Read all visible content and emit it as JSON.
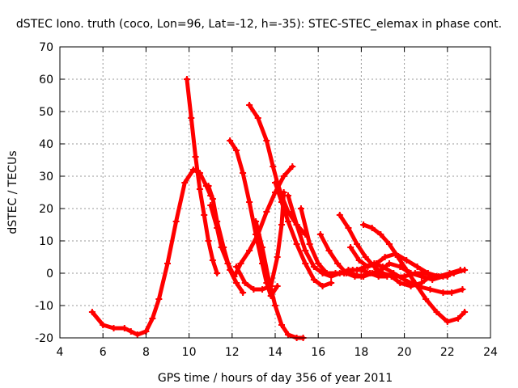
{
  "chart_data": {
    "type": "scatter",
    "title": "dSTEC Iono. truth (coco, Lon=96, Lat=-12, h=-35): STEC-STEC_elemax in phase cont.",
    "xlabel": "GPS time / hours of day 356 of year 2011",
    "ylabel": "dSTEC  / TECUs",
    "xlim": [
      4,
      24
    ],
    "ylim": [
      -20,
      70
    ],
    "xticks": [
      "4",
      "6",
      "8",
      "10",
      "12",
      "14",
      "16",
      "18",
      "20",
      "22",
      "24"
    ],
    "yticks": [
      "-20",
      "-10",
      "0",
      "10",
      "20",
      "30",
      "40",
      "50",
      "60",
      "70"
    ],
    "grid": true,
    "color": "#ff0000",
    "marker": "plus",
    "series": [
      {
        "x": [
          5.5,
          6.0,
          6.5,
          7.0,
          7.3,
          7.6,
          8.0,
          8.3,
          8.6,
          9.0,
          9.4,
          9.8,
          10.2,
          10.5,
          10.8,
          11.0
        ],
        "y": [
          -12,
          -16,
          -17,
          -17,
          -18,
          -19,
          -18,
          -14,
          -8,
          3,
          16,
          28,
          32,
          31,
          27,
          24
        ]
      },
      {
        "x": [
          9.9,
          10.1,
          10.3,
          10.5,
          10.7,
          10.9,
          11.1,
          11.3
        ],
        "y": [
          60,
          48,
          36,
          26,
          18,
          10,
          4,
          0
        ]
      },
      {
        "x": [
          10.9,
          11.1,
          11.3,
          11.6,
          11.9,
          12.2,
          12.5
        ],
        "y": [
          27,
          23,
          16,
          8,
          1,
          -3,
          -6
        ]
      },
      {
        "x": [
          11.0,
          11.3,
          11.5,
          11.8,
          12.1,
          12.4,
          12.8,
          13.2,
          13.6,
          14.0,
          14.4,
          14.8
        ],
        "y": [
          21,
          14,
          8,
          3,
          -1,
          3,
          7,
          12,
          19,
          25,
          30,
          33
        ]
      },
      {
        "x": [
          11.9,
          12.2,
          12.5,
          12.8,
          13.1,
          13.4,
          13.6,
          13.8,
          14.1
        ],
        "y": [
          41,
          38,
          31,
          22,
          12,
          3,
          -3,
          -7,
          -4
        ]
      },
      {
        "x": [
          12.8,
          13.2,
          13.6,
          13.9,
          14.1,
          14.3,
          14.6,
          15.0,
          15.4
        ],
        "y": [
          52,
          48,
          41,
          33,
          28,
          24,
          19,
          15,
          12
        ]
      },
      {
        "x": [
          12.2,
          12.6,
          13.0,
          13.4,
          13.8,
          14.1,
          14.3,
          14.4
        ],
        "y": [
          2,
          -3,
          -5,
          -5,
          -4,
          5,
          15,
          25
        ]
      },
      {
        "x": [
          13.1,
          13.4,
          13.7,
          14.0,
          14.3,
          14.6,
          15.0,
          15.3
        ],
        "y": [
          16,
          8,
          -2,
          -10,
          -16,
          -19,
          -20,
          -20
        ]
      },
      {
        "x": [
          14.0,
          14.3,
          14.6,
          15.0,
          15.4,
          15.8,
          16.2,
          16.6
        ],
        "y": [
          28,
          22,
          16,
          9,
          3,
          -2,
          -4,
          -3
        ]
      },
      {
        "x": [
          14.6,
          15.0,
          15.4,
          15.8,
          16.2,
          16.6,
          17.0,
          17.4,
          17.8,
          18.2,
          18.6,
          19.0,
          19.5,
          20.0,
          20.6,
          21.2,
          21.8,
          22.2,
          22.7
        ],
        "y": [
          24,
          15,
          7,
          2,
          0,
          -1,
          0,
          1,
          1,
          2,
          3,
          2,
          0,
          -2,
          -4,
          -5,
          -6,
          -6,
          -5
        ]
      },
      {
        "x": [
          15.2,
          15.6,
          16.0,
          16.4,
          16.8,
          17.2,
          17.6,
          18.0,
          18.4,
          18.8,
          19.2
        ],
        "y": [
          20,
          9,
          3,
          0,
          0,
          0,
          1,
          1,
          0,
          -1,
          -1
        ]
      },
      {
        "x": [
          16.1,
          16.5,
          16.9,
          17.3,
          17.7,
          18.1,
          18.5,
          18.9,
          19.3,
          19.8,
          20.3,
          20.8,
          21.3,
          21.8,
          22.3,
          22.8
        ],
        "y": [
          12,
          7,
          3,
          0,
          -1,
          -1,
          0,
          1,
          3,
          2,
          0,
          -1,
          -2,
          -1,
          0,
          1
        ]
      },
      {
        "x": [
          17.0,
          17.4,
          17.8,
          18.2,
          18.6,
          19.0,
          19.5,
          20.0,
          20.5,
          21.0,
          21.5,
          22.0
        ],
        "y": [
          18,
          14,
          9,
          5,
          2,
          0,
          -1,
          -1,
          0,
          0,
          -1,
          -1
        ]
      },
      {
        "x": [
          17.5,
          17.9,
          18.3,
          18.7,
          19.1,
          19.6,
          20.1,
          20.6,
          21.1,
          21.6,
          22.1,
          22.6
        ],
        "y": [
          8,
          4,
          2,
          3,
          5,
          6,
          4,
          2,
          0,
          -1,
          0,
          1
        ]
      },
      {
        "x": [
          18.1,
          18.5,
          18.9,
          19.3,
          19.7,
          20.1,
          20.5,
          21.0,
          21.5,
          22.0,
          22.5,
          22.8
        ],
        "y": [
          15,
          14,
          12,
          9,
          5,
          1,
          -3,
          -8,
          -12,
          -15,
          -14,
          -12
        ]
      },
      {
        "x": [
          17.5,
          18.0,
          18.5,
          19.0,
          19.4,
          19.8,
          20.3,
          20.8,
          21.2
        ],
        "y": [
          0,
          -1,
          0,
          0,
          -1,
          -3,
          -4,
          -3,
          -1
        ]
      }
    ]
  }
}
